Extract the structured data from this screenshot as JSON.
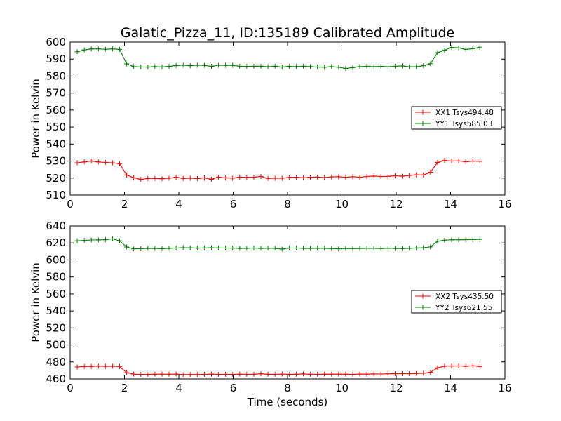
{
  "title": "Galatic_Pizza_11, ID:135189 Calibrated Amplitude",
  "xlabel": "Time (seconds)",
  "colors": {
    "red": "#ff0000",
    "green": "#008000"
  },
  "chart_data": [
    {
      "type": "line",
      "ylabel": "Power in Kelvin",
      "xlim": [
        0,
        16
      ],
      "ylim": [
        510,
        600
      ],
      "xticks": [
        "0",
        "2",
        "4",
        "6",
        "8",
        "10",
        "12",
        "14",
        "16"
      ],
      "yticks": [
        "510",
        "520",
        "530",
        "540",
        "550",
        "560",
        "570",
        "580",
        "590",
        "600"
      ],
      "legend_position": "center-right",
      "x": [
        0.26,
        0.52,
        0.78,
        1.04,
        1.3,
        1.56,
        1.82,
        2.08,
        2.34,
        2.6,
        2.86,
        3.12,
        3.38,
        3.64,
        3.9,
        4.16,
        4.42,
        4.68,
        4.94,
        5.2,
        5.46,
        5.72,
        5.98,
        6.24,
        6.5,
        6.76,
        7.02,
        7.28,
        7.54,
        7.8,
        8.06,
        8.32,
        8.58,
        8.84,
        9.1,
        9.36,
        9.62,
        9.88,
        10.14,
        10.4,
        10.66,
        10.92,
        11.18,
        11.44,
        11.7,
        11.96,
        12.22,
        12.48,
        12.74,
        13.0,
        13.26,
        13.52,
        13.78,
        14.04,
        14.3,
        14.56,
        14.82,
        15.08
      ],
      "series": [
        {
          "name": "XX1 Tsys494.48",
          "color": "#ff0000",
          "values": [
            529.0,
            529.5,
            530.0,
            529.5,
            529.2,
            529.0,
            528.5,
            521.8,
            520.2,
            519.2,
            519.8,
            519.8,
            519.6,
            519.9,
            520.5,
            519.8,
            519.9,
            519.7,
            520.1,
            519.3,
            520.6,
            520.1,
            519.9,
            520.6,
            520.4,
            520.5,
            521.0,
            519.8,
            519.9,
            519.9,
            520.4,
            520.5,
            520.2,
            520.5,
            520.6,
            520.3,
            520.7,
            520.8,
            520.5,
            520.8,
            520.5,
            520.9,
            521.2,
            520.9,
            521.0,
            521.4,
            521.1,
            521.5,
            521.9,
            521.8,
            523.4,
            529.2,
            530.4,
            530.0,
            530.1,
            529.6,
            530.0,
            529.8
          ]
        },
        {
          "name": "YY1 Tsys585.03",
          "color": "#008000",
          "values": [
            594.3,
            595.4,
            596.0,
            596.0,
            595.8,
            596.0,
            595.7,
            587.2,
            585.6,
            585.4,
            585.3,
            585.6,
            585.4,
            585.7,
            586.2,
            586.4,
            586.1,
            586.4,
            586.3,
            585.7,
            586.4,
            586.3,
            586.3,
            585.8,
            585.7,
            585.8,
            585.8,
            585.5,
            585.8,
            585.3,
            585.7,
            585.6,
            585.8,
            585.6,
            585.3,
            585.2,
            585.6,
            585.2,
            584.5,
            585.0,
            585.6,
            585.8,
            585.6,
            585.7,
            585.5,
            585.8,
            586.0,
            585.5,
            585.5,
            586.1,
            587.3,
            593.8,
            595.2,
            596.9,
            596.6,
            595.7,
            596.1,
            597.0
          ]
        }
      ]
    },
    {
      "type": "line",
      "ylabel": "Power in Kelvin",
      "xlim": [
        0,
        16
      ],
      "ylim": [
        460,
        640
      ],
      "xticks": [
        "0",
        "2",
        "4",
        "6",
        "8",
        "10",
        "12",
        "14",
        "16"
      ],
      "yticks": [
        "460",
        "480",
        "500",
        "520",
        "540",
        "560",
        "580",
        "600",
        "620",
        "640"
      ],
      "legend_position": "center-right",
      "x": [
        0.26,
        0.52,
        0.78,
        1.04,
        1.3,
        1.56,
        1.82,
        2.08,
        2.34,
        2.6,
        2.86,
        3.12,
        3.38,
        3.64,
        3.9,
        4.16,
        4.42,
        4.68,
        4.94,
        5.2,
        5.46,
        5.72,
        5.98,
        6.24,
        6.5,
        6.76,
        7.02,
        7.28,
        7.54,
        7.8,
        8.06,
        8.32,
        8.58,
        8.84,
        9.1,
        9.36,
        9.62,
        9.88,
        10.14,
        10.4,
        10.66,
        10.92,
        11.18,
        11.44,
        11.7,
        11.96,
        12.22,
        12.48,
        12.74,
        13.0,
        13.26,
        13.52,
        13.78,
        14.04,
        14.3,
        14.56,
        14.82,
        15.08
      ],
      "series": [
        {
          "name": "XX2 Tsys435.50",
          "color": "#ff0000",
          "values": [
            474.0,
            474.6,
            474.7,
            475.0,
            474.8,
            474.9,
            474.6,
            467.4,
            465.6,
            465.4,
            465.2,
            465.5,
            465.6,
            465.5,
            465.7,
            465.0,
            465.2,
            465.1,
            465.4,
            465.6,
            465.3,
            465.4,
            465.3,
            465.6,
            465.4,
            465.5,
            466.0,
            465.5,
            465.4,
            465.7,
            465.3,
            465.5,
            465.9,
            465.5,
            465.4,
            465.6,
            465.5,
            465.6,
            465.5,
            465.4,
            465.7,
            465.6,
            465.9,
            465.8,
            466.0,
            466.1,
            466.2,
            466.1,
            466.4,
            466.7,
            467.8,
            473.0,
            475.0,
            475.1,
            475.3,
            474.8,
            475.4,
            474.6
          ]
        },
        {
          "name": "YY2 Tsys621.55",
          "color": "#008000",
          "values": [
            622.5,
            623.0,
            623.5,
            623.6,
            623.8,
            624.8,
            622.6,
            615.2,
            613.1,
            613.2,
            613.6,
            613.5,
            613.3,
            613.7,
            614.0,
            614.4,
            614.2,
            613.9,
            614.1,
            614.3,
            614.1,
            614.0,
            613.9,
            613.5,
            613.6,
            614.0,
            613.5,
            613.8,
            613.7,
            612.8,
            614.0,
            614.0,
            613.7,
            613.5,
            613.8,
            613.7,
            613.4,
            613.1,
            613.5,
            613.4,
            613.5,
            613.7,
            613.6,
            613.4,
            613.8,
            613.5,
            613.4,
            613.7,
            614.1,
            614.4,
            615.3,
            622.0,
            623.2,
            623.7,
            623.7,
            623.8,
            624.0,
            624.2
          ]
        }
      ]
    }
  ]
}
